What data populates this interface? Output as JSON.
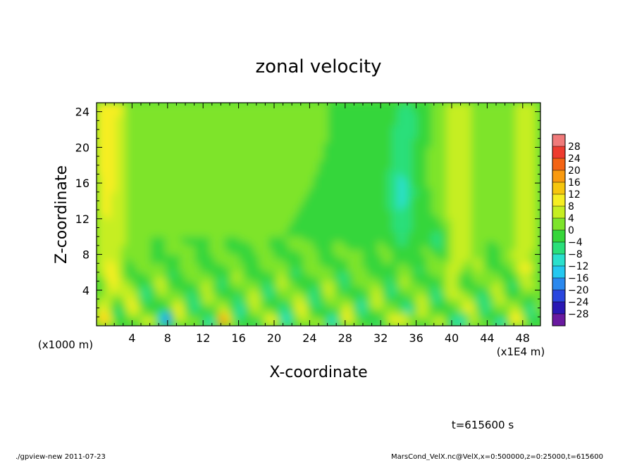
{
  "chart_data": {
    "type": "heatmap",
    "title": "zonal velocity",
    "xlabel": "X-coordinate",
    "ylabel": "Z-coordinate",
    "x_unit": "(x1E4 m)",
    "y_unit": "(x1000 m)",
    "xlim": [
      0,
      50
    ],
    "ylim": [
      0,
      25
    ],
    "x_ticks": [
      4,
      8,
      12,
      16,
      20,
      24,
      28,
      32,
      36,
      40,
      44,
      48
    ],
    "y_ticks": [
      4,
      8,
      12,
      16,
      20,
      24
    ],
    "colorbar": {
      "labels": [
        28,
        24,
        20,
        16,
        12,
        8,
        4,
        0,
        -4,
        -8,
        -12,
        -16,
        -20,
        -24,
        -28
      ],
      "colors": [
        "#f07a7a",
        "#ee3b2f",
        "#f46415",
        "#f99a10",
        "#f6c60e",
        "#f6ee22",
        "#c6ee22",
        "#7ee42c",
        "#36d63a",
        "#2adf7a",
        "#2ae0cc",
        "#24c8f0",
        "#2a88ee",
        "#2a46de",
        "#2a18b4",
        "#6a1aa0"
      ]
    },
    "notes": {
      "time": "t=615600 s",
      "footer_left": "./gpview-new  2011-07-23",
      "footer_right": "MarsCond_VelX.nc@VelX,x=0:500000,z=0:25000,t=615600"
    },
    "features": [
      {
        "x": 1.5,
        "z": 22,
        "value": 14
      },
      {
        "x": 41,
        "z": 18,
        "value": 10
      },
      {
        "x": 48,
        "z": 18,
        "value": 10
      },
      {
        "x": 34.5,
        "z": 14,
        "value": -16
      },
      {
        "x": 35,
        "z": 1,
        "value": 22
      },
      {
        "x": 38,
        "z": 11,
        "value": -14
      },
      {
        "x": 41.5,
        "z": 1,
        "value": -18
      },
      {
        "x": 8,
        "z": 1,
        "value": -16
      },
      {
        "x": 14,
        "z": 1,
        "value": 18
      }
    ]
  }
}
